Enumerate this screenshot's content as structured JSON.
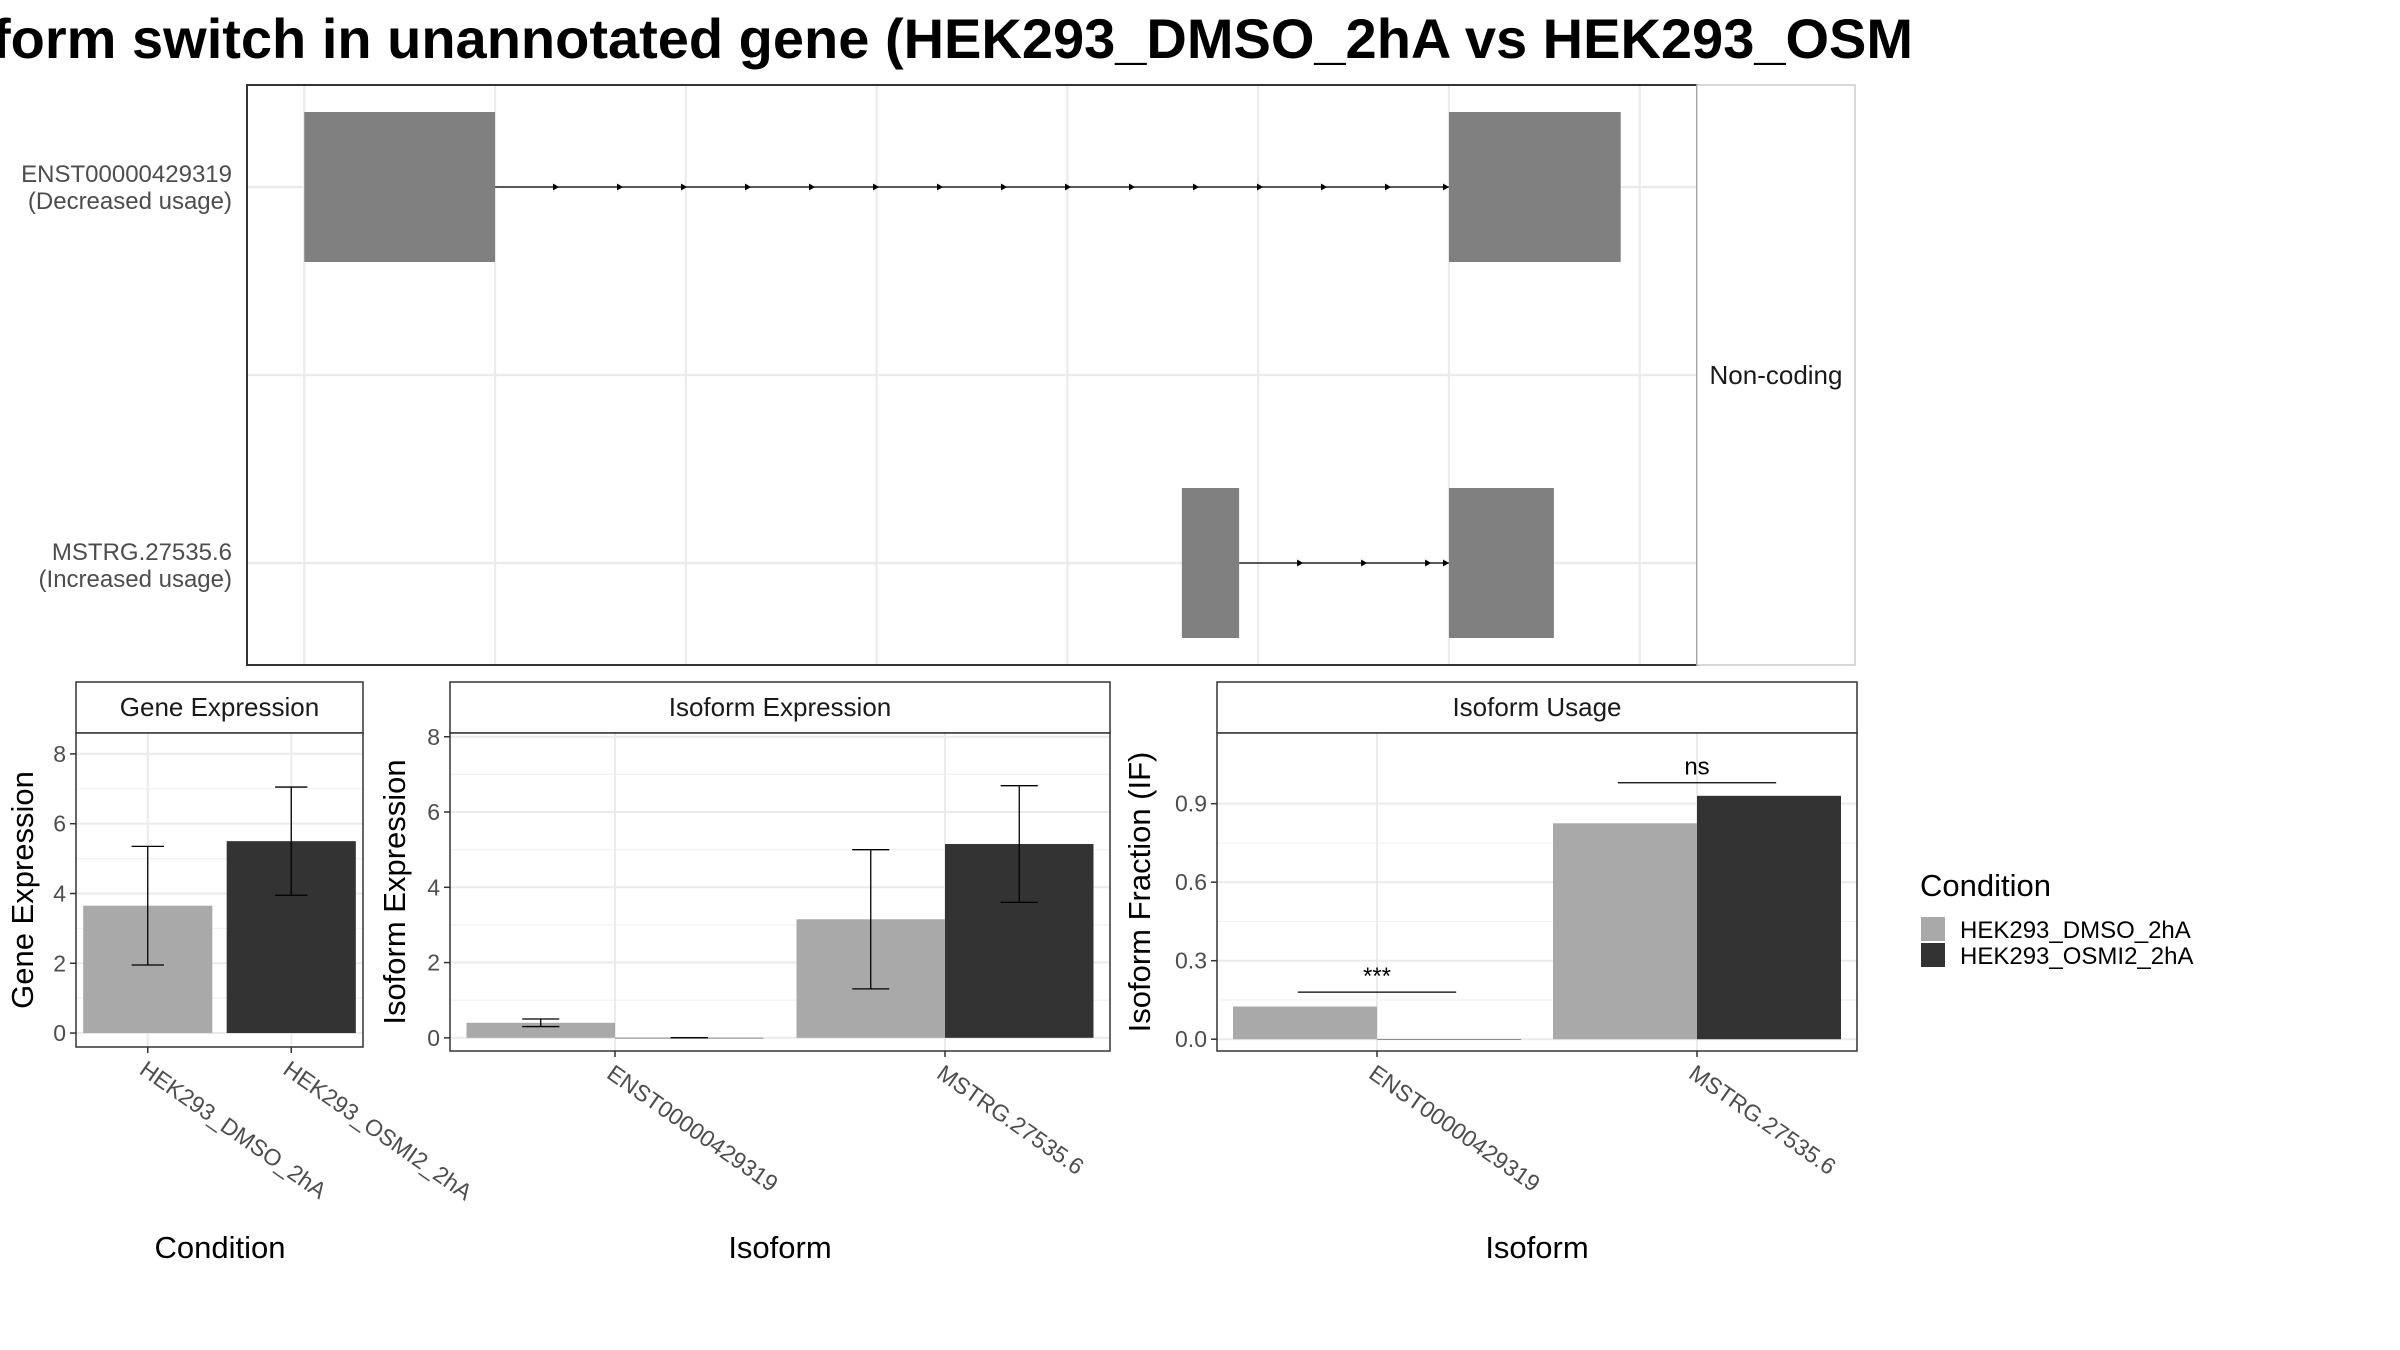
{
  "title": "form switch in unannotated gene (HEK293_DMSO_2hA vs HEK293_OSM",
  "colors": {
    "dmso": "#a9a9a9",
    "osmi": "#333333",
    "exon": "#808080",
    "grid": "#ebebeb",
    "panel_border": "#333333"
  },
  "chart_data": [
    {
      "type": "gene-structure",
      "panel_label": "Non-coding",
      "isoforms": [
        {
          "id": "ENST00000429319",
          "label": "ENST00000429319",
          "usage_label": "(Decreased usage)",
          "exons": [
            [
              0,
              1.0
            ],
            [
              6.0,
              6.9
            ]
          ],
          "exon_color": "exon"
        },
        {
          "id": "MSTRG.27535.6",
          "label": "MSTRG.27535.6",
          "usage_label": "(Increased usage)",
          "exons": [
            [
              4.6,
              4.9
            ],
            [
              6.0,
              6.55
            ]
          ],
          "exon_color": "exon"
        }
      ],
      "xlim": [
        -0.3,
        7.3
      ],
      "x_gridlines": [
        0,
        1,
        2,
        3,
        4,
        5,
        6,
        7
      ],
      "strand_arrows": "right"
    },
    {
      "type": "bar",
      "strip": "Gene Expression",
      "xlabel": "Condition",
      "ylabel": "Gene Expression",
      "categories": [
        "HEK293_DMSO_2hA",
        "HEK293_OSMI2_2hA"
      ],
      "series": [
        {
          "name": "HEK293_DMSO_2hA",
          "values": [
            3.65,
            null
          ],
          "err": [
            [
              1.95,
              5.35
            ],
            null
          ]
        },
        {
          "name": "HEK293_OSMI2_2hA",
          "values": [
            null,
            5.5
          ],
          "err": [
            null,
            [
              3.95,
              7.05
            ]
          ]
        }
      ],
      "ylim": [
        -0.4,
        8.6
      ],
      "yticks": [
        0,
        2,
        4,
        6,
        8
      ],
      "bar_layout": "single"
    },
    {
      "type": "bar",
      "strip": "Isoform Expression",
      "xlabel": "Isoform",
      "ylabel": "Isoform Expression",
      "categories": [
        "ENST00000429319",
        "MSTRG.27535.6"
      ],
      "series": [
        {
          "name": "HEK293_DMSO_2hA",
          "values": [
            0.4,
            3.15
          ],
          "err": [
            [
              0.3,
              0.5
            ],
            [
              1.3,
              5.0
            ]
          ]
        },
        {
          "name": "HEK293_OSMI2_2hA",
          "values": [
            0.0,
            5.15
          ],
          "err": [
            [
              0.0,
              0.0
            ],
            [
              3.6,
              6.7
            ]
          ]
        }
      ],
      "ylim": [
        -0.35,
        8.1
      ],
      "yticks": [
        0,
        2,
        4,
        6,
        8
      ],
      "bar_layout": "dodge"
    },
    {
      "type": "bar",
      "strip": "Isoform Usage",
      "xlabel": "Isoform",
      "ylabel": "Isoform Fraction (IF)",
      "categories": [
        "ENST00000429319",
        "MSTRG.27535.6"
      ],
      "series": [
        {
          "name": "HEK293_DMSO_2hA",
          "values": [
            0.125,
            0.825
          ],
          "err": null
        },
        {
          "name": "HEK293_OSMI2_2hA",
          "values": [
            0.0,
            0.93
          ],
          "err": null
        }
      ],
      "ylim": [
        -0.045,
        1.17
      ],
      "yticks": [
        0.0,
        0.3,
        0.6,
        0.9
      ],
      "ytick_labels": [
        "0.0",
        "0.3",
        "0.6",
        "0.9"
      ],
      "bar_layout": "dodge",
      "significance": [
        {
          "category": "ENST00000429319",
          "label": "***",
          "y": 0.18
        },
        {
          "category": "MSTRG.27535.6",
          "label": "ns",
          "y": 0.98
        }
      ]
    }
  ],
  "legend": {
    "title": "Condition",
    "entries": [
      {
        "label": "HEK293_DMSO_2hA",
        "color": "dmso"
      },
      {
        "label": "HEK293_OSMI2_2hA",
        "color": "osmi"
      }
    ]
  }
}
